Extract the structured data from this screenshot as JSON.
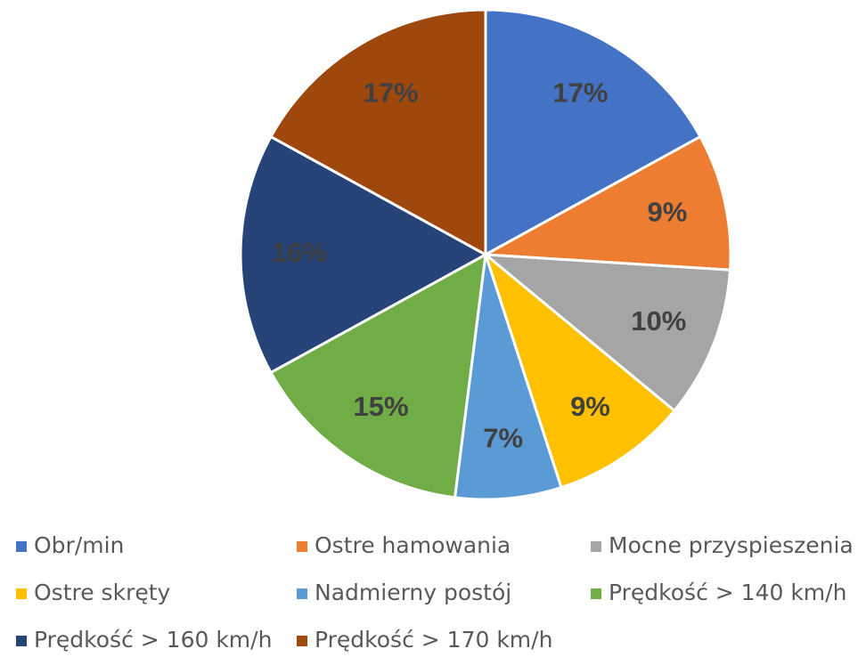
{
  "chart_data": {
    "type": "pie",
    "categories": [
      "Obr/min",
      "Ostre hamowania",
      "Mocne przyspieszenia",
      "Ostre skręty",
      "Nadmierny postój",
      "Prędkość > 140 km/h",
      "Prędkość > 160 km/h",
      "Prędkość > 170 km/h"
    ],
    "values": [
      17,
      9,
      10,
      9,
      7,
      15,
      16,
      17
    ],
    "value_labels": [
      "17%",
      "9%",
      "10%",
      "9%",
      "7%",
      "15%",
      "16%",
      "17%"
    ],
    "colors": [
      "#4472c4",
      "#ed7d31",
      "#a5a5a5",
      "#ffc000",
      "#5b9bd5",
      "#70ad47",
      "#264478",
      "#9e480e"
    ],
    "legend": "bottom"
  }
}
